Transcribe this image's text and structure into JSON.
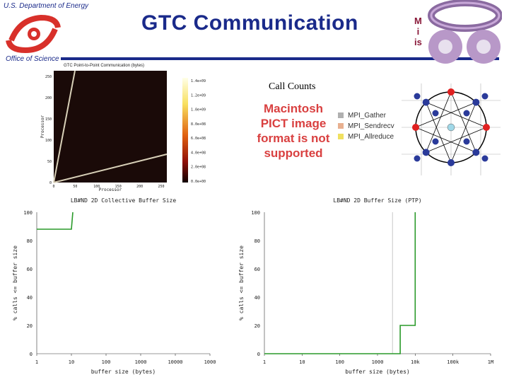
{
  "header": {
    "agency": "U.S. Department of Energy",
    "office": "Office of Science",
    "title": "GTC Communication",
    "image_placeholder": "Macintosh PICT image format is not supported"
  },
  "heatmap": {
    "title": "GTC Point-to-Point Communication (bytes)",
    "xlabel": "Processor",
    "ylabel": "Processor",
    "x_ticks": [
      "0",
      "50",
      "100",
      "150",
      "200",
      "250"
    ],
    "y_ticks": [
      "0",
      "50",
      "100",
      "150",
      "200",
      "250"
    ],
    "colorbar_ticks": [
      "1.4e+09",
      "1.2e+09",
      "1.0e+09",
      "8.0e+08",
      "6.0e+08",
      "4.0e+08",
      "2.0e+08",
      "0.0e+00"
    ]
  },
  "call_counts": {
    "title": "Call Counts",
    "message": "Macintosh PICT image format is not supported",
    "legend": [
      {
        "label": "MPI_Gather",
        "color": "#b0b0b0"
      },
      {
        "label": "MPI_Sendrecv",
        "color": "#e8b090"
      },
      {
        "label": "MPI_Allreduce",
        "color": "#f0e060"
      }
    ]
  },
  "topology": {
    "node_color": "#2a3a9a",
    "highlight_color": "#e02020",
    "center_color": "#a0d8e8"
  },
  "chart_data": [
    {
      "type": "line",
      "title": "LB#ND 2D Collective Buffer Size",
      "xlabel": "buffer size (bytes)",
      "ylabel": "% calls <= buffer size",
      "x_scale": "log",
      "x_ticks": [
        "1",
        "10",
        "100",
        "1000",
        "10000",
        "1000"
      ],
      "y_ticks": [
        "0",
        "20",
        "40",
        "60",
        "80",
        "100"
      ],
      "ylim": [
        0,
        100
      ],
      "series": [
        {
          "color": "#2a9a2a",
          "x": [
            1,
            10,
            10,
            11
          ],
          "y": [
            88,
            88,
            88,
            100
          ]
        }
      ]
    },
    {
      "type": "line",
      "title": "LB#ND 2D Buffer Size (PTP)",
      "xlabel": "buffer size (bytes)",
      "ylabel": "% calls <= buffer size",
      "x_scale": "log",
      "x_ticks": [
        "1",
        "10",
        "100",
        "1000",
        "10k",
        "100k",
        "1M"
      ],
      "y_ticks": [
        "0",
        "20",
        "40",
        "60",
        "80",
        "100"
      ],
      "ylim": [
        0,
        100
      ],
      "series": [
        {
          "color": "#2a9a2a",
          "x": [
            1,
            4000,
            4000,
            10000,
            10000
          ],
          "y": [
            0,
            0,
            20,
            20,
            100
          ]
        }
      ]
    }
  ]
}
